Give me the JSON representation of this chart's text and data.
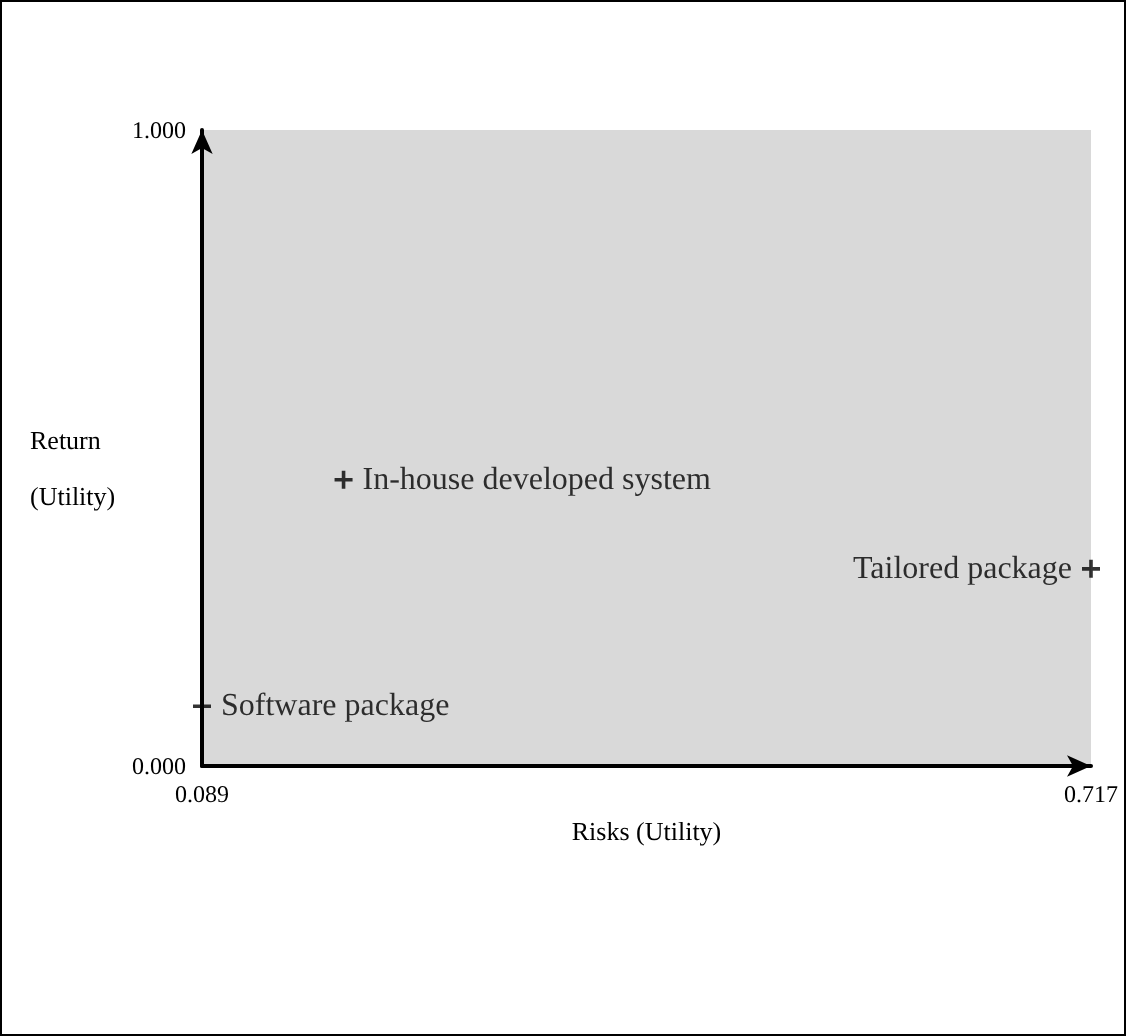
{
  "chart_data": {
    "type": "scatter",
    "xlabel": "Risks (Utility)",
    "ylabel": "Return (Utility)",
    "xlim": [
      0.089,
      0.717
    ],
    "ylim": [
      0,
      1
    ],
    "xticks": [
      0.089,
      0.717
    ],
    "yticks": [
      {
        "value": 0,
        "label": "0.000"
      },
      {
        "value": 1,
        "label": "1.000"
      }
    ],
    "marker": "cross",
    "grid": false,
    "legend": false,
    "series": [
      {
        "name": "In-house developed system",
        "color": "#000000",
        "x": [
          0.189
        ],
        "values": [
          0.45
        ]
      },
      {
        "name": "Tailored package",
        "color": "#000000",
        "x": [
          0.717
        ],
        "values": [
          0.31
        ]
      },
      {
        "name": "Software package",
        "color": "#000000",
        "x": [
          0.089
        ],
        "values": [
          0.094
        ]
      }
    ]
  }
}
